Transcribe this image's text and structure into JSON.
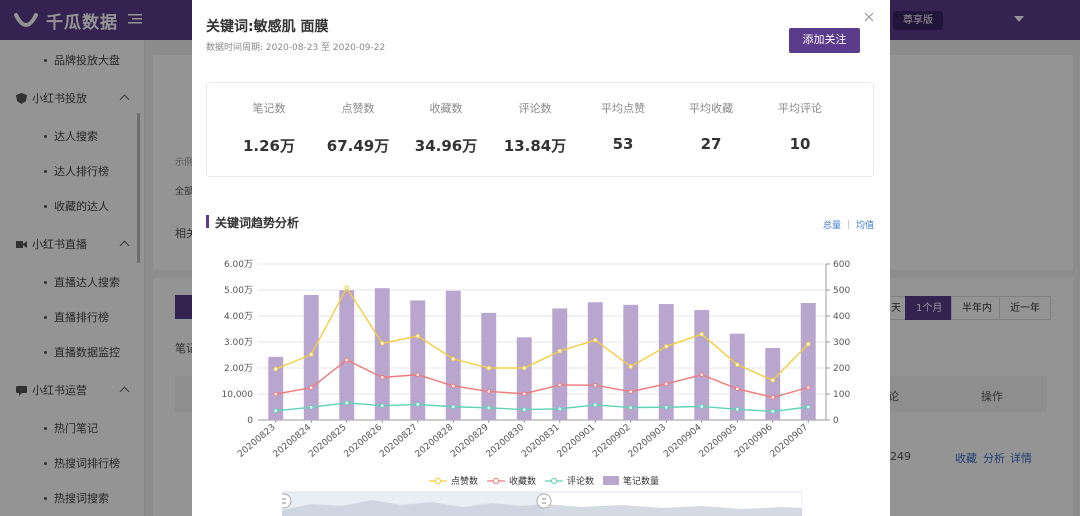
{
  "app": {
    "name": "千瓜数据",
    "tier": "尊享版"
  },
  "sidebar": {
    "items": [
      {
        "type": "item",
        "label": "品牌投放大盘"
      },
      {
        "type": "group",
        "label": "小红书投放"
      },
      {
        "type": "item",
        "label": "达人搜索"
      },
      {
        "type": "item",
        "label": "达人排行榜"
      },
      {
        "type": "item",
        "label": "收藏的达人"
      },
      {
        "type": "group",
        "label": "小红书直播"
      },
      {
        "type": "item",
        "label": "直播达人搜索"
      },
      {
        "type": "item",
        "label": "直播排行榜"
      },
      {
        "type": "item",
        "label": "直播数据监控"
      },
      {
        "type": "group",
        "label": "小红书运营"
      },
      {
        "type": "item",
        "label": "热门笔记"
      },
      {
        "type": "item",
        "label": "热搜词排行榜"
      },
      {
        "type": "item",
        "label": "热搜词搜索"
      }
    ]
  },
  "background": {
    "snippets": [
      "示例",
      "全部",
      "相关",
      "笔记"
    ],
    "period_tabs": [
      "天",
      "1个月",
      "半年内",
      "近一年"
    ],
    "active_period": "1个月",
    "column_headers": [
      "论",
      "操作"
    ],
    "row_value": "249",
    "row_actions": [
      "收藏",
      "分析",
      "详情"
    ]
  },
  "modal": {
    "title": "关键词:敏感肌 面膜",
    "period": "数据时间周期: 2020-08-23 至 2020-09-22",
    "follow_label": "添加关注",
    "stats": [
      {
        "label": "笔记数",
        "value": "1.26万"
      },
      {
        "label": "点赞数",
        "value": "67.49万"
      },
      {
        "label": "收藏数",
        "value": "34.96万"
      },
      {
        "label": "评论数",
        "value": "13.84万"
      },
      {
        "label": "平均点赞",
        "value": "53"
      },
      {
        "label": "平均收藏",
        "value": "27"
      },
      {
        "label": "平均评论",
        "value": "10"
      }
    ],
    "section_title": "关键词趋势分析",
    "toggles": [
      "总量",
      "均值"
    ],
    "active_toggle": "总量"
  },
  "colors": {
    "brand": "#5b3b8c",
    "likes": "#f5cd41",
    "favorites": "#f07a7a",
    "comments": "#5fd3b5",
    "notes": "#b9a6cf"
  },
  "chart_data": {
    "type": "bar+line",
    "categories": [
      "20200823",
      "20200824",
      "20200825",
      "20200826",
      "20200827",
      "20200828",
      "20200829",
      "20200830",
      "20200831",
      "20200901",
      "20200902",
      "20200903",
      "20200904",
      "20200905",
      "20200906",
      "20200907"
    ],
    "left_axis": {
      "ticks": [
        "0",
        "10,000",
        "2.00万",
        "3.00万",
        "4.00万",
        "5.00万",
        "6.00万"
      ],
      "range": [
        0,
        60000
      ]
    },
    "right_axis": {
      "ticks": [
        "0",
        "100",
        "200",
        "300",
        "400",
        "500",
        "600"
      ],
      "range": [
        0,
        600
      ]
    },
    "series": [
      {
        "name": "点赞数",
        "type": "line",
        "axis": "left",
        "color": "#f5cd41",
        "values": [
          19600,
          25200,
          50800,
          29500,
          32300,
          23500,
          20000,
          20000,
          26500,
          30700,
          20600,
          28300,
          33000,
          21300,
          15300,
          29200
        ]
      },
      {
        "name": "收藏数",
        "type": "line",
        "axis": "left",
        "color": "#f07a7a",
        "values": [
          10000,
          12400,
          23100,
          16400,
          17400,
          13100,
          11000,
          10100,
          13500,
          13400,
          10900,
          13900,
          17400,
          12000,
          8700,
          12500
        ]
      },
      {
        "name": "评论数",
        "type": "line",
        "axis": "left",
        "color": "#5fd3b5",
        "values": [
          3600,
          4900,
          6600,
          5500,
          6000,
          5100,
          4700,
          4000,
          4300,
          5800,
          4800,
          4900,
          5200,
          4100,
          3300,
          5000
        ]
      },
      {
        "name": "笔记数量",
        "type": "bar",
        "axis": "right",
        "color": "#b9a6cf",
        "values": [
          243,
          481,
          499,
          507,
          460,
          497,
          412,
          318,
          429,
          453,
          443,
          446,
          423,
          332,
          277,
          450
        ]
      }
    ],
    "legend_position": "bottom"
  }
}
